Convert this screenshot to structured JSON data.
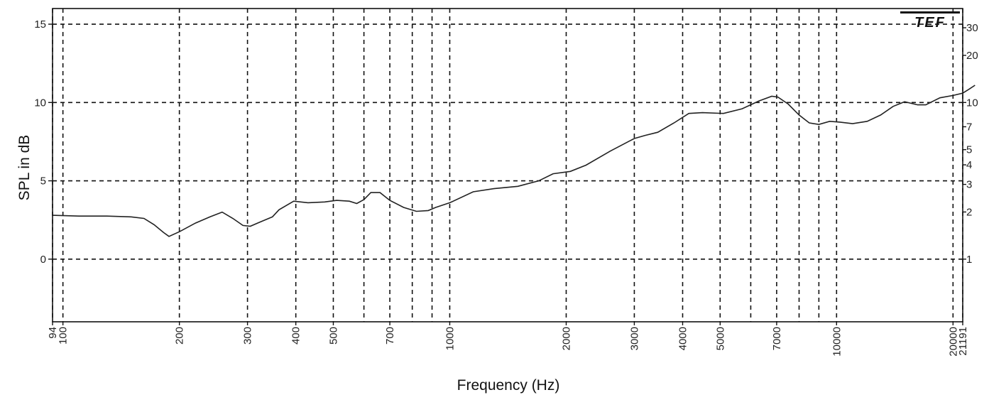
{
  "chart_data": {
    "type": "line",
    "title": "",
    "xlabel": "Frequency (Hz)",
    "ylabel": "SPL in dB",
    "x_scale": "log",
    "xlim": [
      94,
      21191
    ],
    "ylim": [
      -4,
      16
    ],
    "grid": true,
    "legend": "none",
    "y_ticks": [
      {
        "value": 0,
        "label": "0"
      },
      {
        "value": 5,
        "label": "5"
      },
      {
        "value": 10,
        "label": "10"
      },
      {
        "value": 15,
        "label": "15"
      }
    ],
    "x_ticks": [
      {
        "value": 94,
        "label": "94"
      },
      {
        "value": 100,
        "label": "100"
      },
      {
        "value": 200,
        "label": "200"
      },
      {
        "value": 300,
        "label": "300"
      },
      {
        "value": 400,
        "label": "400"
      },
      {
        "value": 500,
        "label": "500"
      },
      {
        "value": 700,
        "label": "700"
      },
      {
        "value": 1000,
        "label": "1000"
      },
      {
        "value": 2000,
        "label": "2000"
      },
      {
        "value": 3000,
        "label": "3000"
      },
      {
        "value": 4000,
        "label": "4000"
      },
      {
        "value": 5000,
        "label": "5000"
      },
      {
        "value": 7000,
        "label": "7000"
      },
      {
        "value": 10000,
        "label": "10000"
      },
      {
        "value": 20000,
        "label": "20000"
      },
      {
        "value": 21191,
        "label": "21191"
      }
    ],
    "x_minor_grid": [
      600,
      800,
      900,
      6000,
      8000,
      9000
    ],
    "right_axis_ticks": [
      {
        "value": 1,
        "label": "1"
      },
      {
        "value": 2,
        "label": "2"
      },
      {
        "value": 3,
        "label": "3"
      },
      {
        "value": 4,
        "label": "4"
      },
      {
        "value": 5,
        "label": "5"
      },
      {
        "value": 7,
        "label": "7"
      },
      {
        "value": 10,
        "label": "10"
      },
      {
        "value": 20,
        "label": "20"
      },
      {
        "value": 30,
        "label": "30"
      }
    ],
    "series": [
      {
        "color": "#222222",
        "points": [
          [
            94,
            2.8
          ],
          [
            110,
            2.75
          ],
          [
            130,
            2.75
          ],
          [
            150,
            2.7
          ],
          [
            162,
            2.6
          ],
          [
            172,
            2.2
          ],
          [
            182,
            1.7
          ],
          [
            188,
            1.45
          ],
          [
            200,
            1.75
          ],
          [
            220,
            2.3
          ],
          [
            240,
            2.7
          ],
          [
            258,
            3.0
          ],
          [
            275,
            2.6
          ],
          [
            292,
            2.15
          ],
          [
            305,
            2.1
          ],
          [
            322,
            2.35
          ],
          [
            348,
            2.7
          ],
          [
            362,
            3.15
          ],
          [
            395,
            3.7
          ],
          [
            430,
            3.6
          ],
          [
            475,
            3.65
          ],
          [
            510,
            3.75
          ],
          [
            550,
            3.7
          ],
          [
            575,
            3.55
          ],
          [
            600,
            3.8
          ],
          [
            625,
            4.25
          ],
          [
            660,
            4.25
          ],
          [
            700,
            3.75
          ],
          [
            760,
            3.3
          ],
          [
            820,
            3.05
          ],
          [
            880,
            3.1
          ],
          [
            920,
            3.3
          ],
          [
            1000,
            3.6
          ],
          [
            1150,
            4.3
          ],
          [
            1300,
            4.5
          ],
          [
            1500,
            4.65
          ],
          [
            1700,
            5.0
          ],
          [
            1850,
            5.45
          ],
          [
            2050,
            5.6
          ],
          [
            2250,
            6.0
          ],
          [
            2600,
            6.9
          ],
          [
            3000,
            7.7
          ],
          [
            3200,
            7.9
          ],
          [
            3450,
            8.1
          ],
          [
            3800,
            8.7
          ],
          [
            4150,
            9.3
          ],
          [
            4500,
            9.35
          ],
          [
            5100,
            9.3
          ],
          [
            5700,
            9.6
          ],
          [
            6300,
            10.1
          ],
          [
            6800,
            10.4
          ],
          [
            7050,
            10.35
          ],
          [
            7500,
            9.9
          ],
          [
            8000,
            9.2
          ],
          [
            8500,
            8.7
          ],
          [
            9000,
            8.6
          ],
          [
            9600,
            8.8
          ],
          [
            10200,
            8.75
          ],
          [
            11000,
            8.65
          ],
          [
            12000,
            8.8
          ],
          [
            13000,
            9.2
          ],
          [
            14000,
            9.75
          ],
          [
            15000,
            10.05
          ],
          [
            16200,
            9.85
          ],
          [
            17000,
            9.85
          ],
          [
            18500,
            10.3
          ],
          [
            20000,
            10.45
          ],
          [
            21191,
            10.6
          ],
          [
            22000,
            10.85
          ],
          [
            22800,
            11.1
          ]
        ]
      }
    ]
  },
  "brand": {
    "logo_text": "TEF"
  },
  "axes": {
    "xlabel": "Frequency (Hz)",
    "ylabel": "SPL in dB"
  }
}
